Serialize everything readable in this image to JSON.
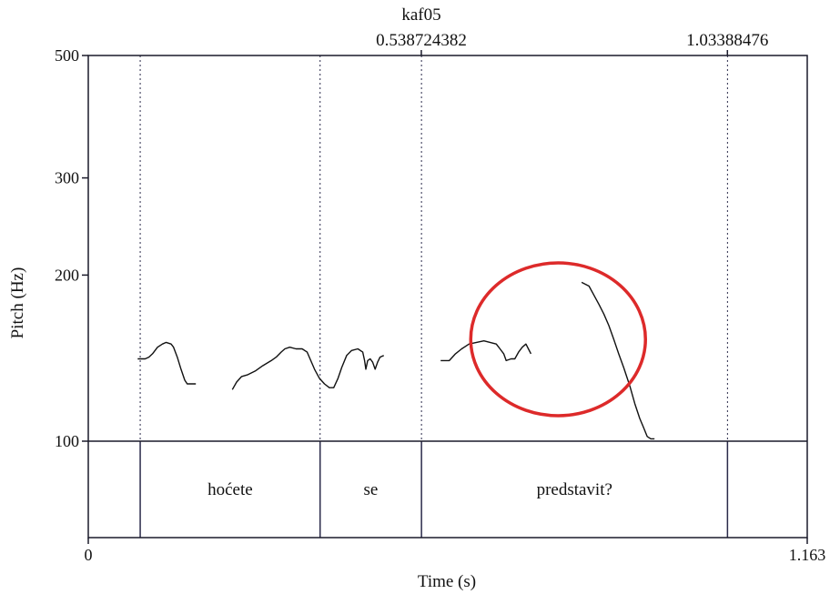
{
  "chart_data": {
    "type": "line",
    "title": "kaf05",
    "xlabel": "Time (s)",
    "ylabel": "Pitch (Hz)",
    "xlim": [
      0,
      1.163
    ],
    "ylim": [
      100,
      500
    ],
    "y_scale": "log",
    "x_tick_labels": [
      "0",
      "1.163"
    ],
    "y_ticks": [
      500,
      300,
      200,
      100
    ],
    "y_tick_labels": [
      "500",
      "300",
      "200",
      "100"
    ],
    "top_markers": [
      {
        "x": 0.538724382,
        "label": "0.538724382"
      },
      {
        "x": 1.03388476,
        "label": "1.03388476"
      }
    ],
    "boundaries": [
      {
        "x": 0.084
      },
      {
        "x": 0.375
      },
      {
        "x": 0.539,
        "label": "0.538724382"
      },
      {
        "x": 1.034,
        "label": "1.03388476"
      }
    ],
    "intervals": [
      {
        "label": "hoćete",
        "start": 0.084,
        "end": 0.375
      },
      {
        "label": "se",
        "start": 0.375,
        "end": 0.539
      },
      {
        "label": "predstavit?",
        "start": 0.539,
        "end": 1.034
      }
    ],
    "series": [
      {
        "segment": 1,
        "points": [
          [
            0.08,
            141
          ],
          [
            0.092,
            141
          ],
          [
            0.098,
            142
          ],
          [
            0.104,
            144
          ],
          [
            0.112,
            148
          ],
          [
            0.12,
            150
          ],
          [
            0.126,
            151
          ],
          [
            0.134,
            150
          ],
          [
            0.138,
            148
          ],
          [
            0.144,
            142
          ],
          [
            0.15,
            135
          ],
          [
            0.156,
            129
          ],
          [
            0.16,
            127
          ],
          [
            0.168,
            127
          ],
          [
            0.174,
            127
          ]
        ]
      },
      {
        "segment": 2,
        "points": [
          [
            0.233,
            124
          ],
          [
            0.24,
            128
          ],
          [
            0.248,
            131
          ],
          [
            0.258,
            132
          ],
          [
            0.27,
            134
          ],
          [
            0.282,
            137
          ],
          [
            0.296,
            140
          ],
          [
            0.304,
            142
          ],
          [
            0.312,
            145
          ],
          [
            0.318,
            147
          ],
          [
            0.326,
            148
          ],
          [
            0.336,
            147
          ],
          [
            0.346,
            147
          ],
          [
            0.354,
            145
          ],
          [
            0.36,
            140
          ],
          [
            0.366,
            135
          ],
          [
            0.374,
            130
          ],
          [
            0.382,
            127
          ],
          [
            0.39,
            125
          ],
          [
            0.397,
            125
          ],
          [
            0.404,
            130
          ],
          [
            0.41,
            136
          ],
          [
            0.418,
            143
          ],
          [
            0.426,
            146
          ],
          [
            0.436,
            147
          ],
          [
            0.444,
            145
          ],
          [
            0.447,
            140
          ],
          [
            0.449,
            135
          ],
          [
            0.452,
            140
          ],
          [
            0.456,
            141
          ],
          [
            0.46,
            139
          ],
          [
            0.464,
            135
          ],
          [
            0.468,
            139
          ],
          [
            0.472,
            142
          ],
          [
            0.478,
            143
          ]
        ]
      },
      {
        "segment": 3,
        "points": [
          [
            0.57,
            140
          ],
          [
            0.584,
            140
          ],
          [
            0.594,
            144
          ],
          [
            0.604,
            147
          ],
          [
            0.616,
            150
          ],
          [
            0.628,
            151
          ],
          [
            0.64,
            152
          ],
          [
            0.65,
            151
          ],
          [
            0.66,
            150
          ],
          [
            0.666,
            147
          ],
          [
            0.672,
            144
          ],
          [
            0.676,
            140
          ],
          [
            0.684,
            141
          ],
          [
            0.69,
            141
          ],
          [
            0.696,
            145
          ],
          [
            0.702,
            148
          ],
          [
            0.708,
            150
          ],
          [
            0.712,
            147
          ],
          [
            0.716,
            144
          ]
        ]
      },
      {
        "segment": 4,
        "points": [
          [
            0.798,
            194
          ],
          [
            0.81,
            191
          ],
          [
            0.818,
            184
          ],
          [
            0.826,
            177
          ],
          [
            0.834,
            170
          ],
          [
            0.842,
            162
          ],
          [
            0.85,
            153
          ],
          [
            0.858,
            144
          ],
          [
            0.866,
            136
          ],
          [
            0.876,
            126
          ],
          [
            0.884,
            117
          ],
          [
            0.892,
            110
          ],
          [
            0.898,
            106
          ],
          [
            0.904,
            102
          ],
          [
            0.91,
            101
          ],
          [
            0.916,
            101
          ]
        ]
      }
    ],
    "annotation": {
      "shape": "circle",
      "color": "#dd2a2a",
      "center": [
        0.76,
        153
      ]
    },
    "colors": {
      "axis": "#1a1a2a",
      "curve": "#111111",
      "boundary": "#2a2a4a",
      "annotation": "#dd2a2a"
    }
  }
}
